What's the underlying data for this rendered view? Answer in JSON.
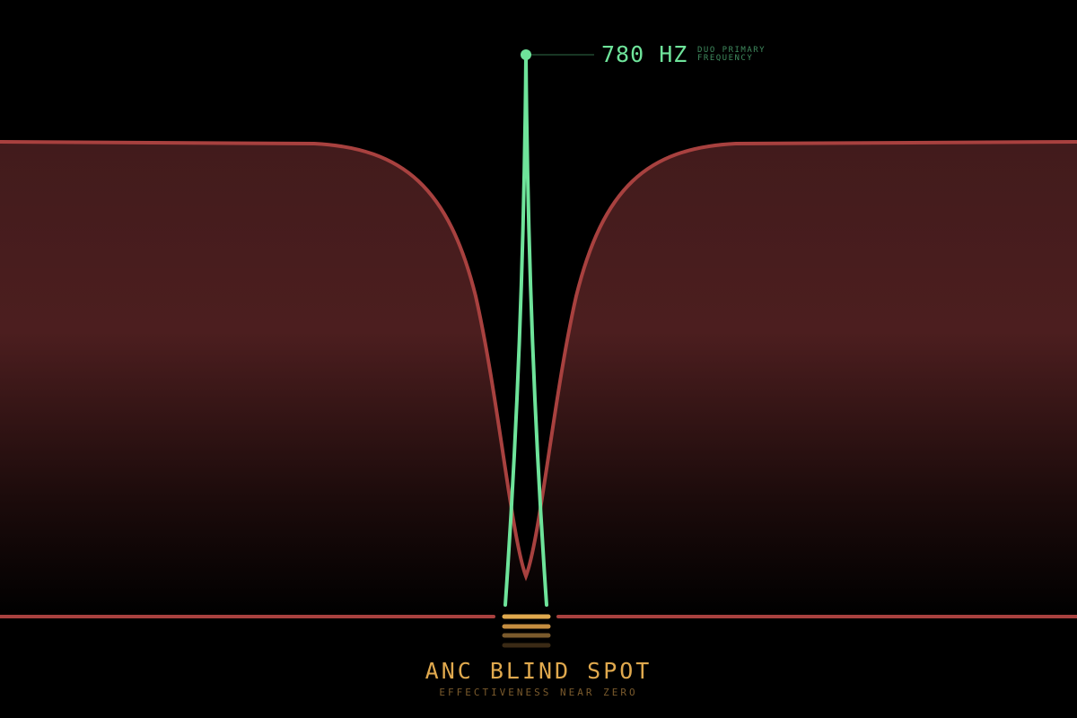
{
  "callout": {
    "value": "780 HZ",
    "label_line1": "DUO PRIMARY",
    "label_line2": "FREQUENCY"
  },
  "title": "ANC BLIND SPOT",
  "subtitle": "EFFECTIVENESS NEAR ZERO",
  "colors": {
    "anc_curve": "#a8413f",
    "anc_fill": "#4a1e1f",
    "frequency_spike": "#6ee39a",
    "accent": "#e0a94e"
  }
}
